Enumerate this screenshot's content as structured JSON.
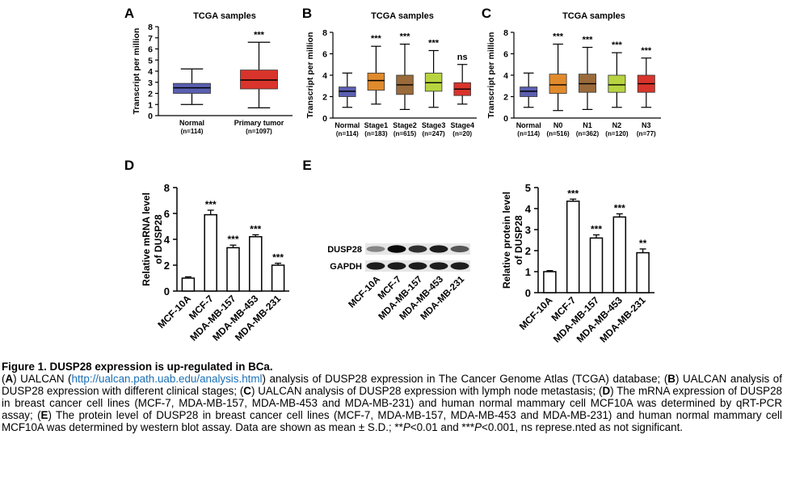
{
  "panels": {
    "A": {
      "letter": "A",
      "title": "TCGA samples",
      "ylabel": "Transcript per million",
      "ylim": [
        0,
        8
      ],
      "yticks": [
        "0",
        "1",
        "2",
        "3",
        "4",
        "5",
        "6",
        "7",
        "8"
      ],
      "groups": [
        {
          "name": "Normal",
          "n": "(n=114)",
          "sig": "",
          "color": "#5a5fb0",
          "min": 1.0,
          "q1": 2.0,
          "median": 2.5,
          "q3": 2.9,
          "max": 4.2
        },
        {
          "name": "Primary  tumor",
          "n": "(n=1097)",
          "sig": "***",
          "color": "#d9342b",
          "min": 0.7,
          "q1": 2.4,
          "median": 3.2,
          "q3": 4.1,
          "max": 6.6
        }
      ]
    },
    "B": {
      "letter": "B",
      "title": "TCGA samples",
      "ylabel": "Transcript per million",
      "ylim": [
        0,
        8
      ],
      "yticks": [
        "0",
        "2",
        "4",
        "6",
        "8"
      ],
      "groups": [
        {
          "name": "Normal",
          "n": "(n=114)",
          "sig": "",
          "color": "#5a5fb0",
          "min": 1.0,
          "q1": 2.0,
          "median": 2.5,
          "q3": 2.9,
          "max": 4.2
        },
        {
          "name": "Stage1",
          "n": "(n=183)",
          "sig": "***",
          "color": "#e08a2c",
          "min": 1.3,
          "q1": 2.6,
          "median": 3.5,
          "q3": 4.2,
          "max": 6.7
        },
        {
          "name": "Stage2",
          "n": "(n=615)",
          "sig": "***",
          "color": "#9a6a3a",
          "min": 0.8,
          "q1": 2.2,
          "median": 3.1,
          "q3": 4.0,
          "max": 6.9
        },
        {
          "name": "Stage3",
          "n": "(n=247)",
          "sig": "***",
          "color": "#b7d440",
          "min": 1.0,
          "q1": 2.5,
          "median": 3.3,
          "q3": 4.2,
          "max": 6.3
        },
        {
          "name": "Stage4",
          "n": "(n=20)",
          "sig": "ns",
          "color": "#d9342b",
          "min": 1.3,
          "q1": 2.1,
          "median": 2.7,
          "q3": 3.3,
          "max": 5.0
        }
      ]
    },
    "C": {
      "letter": "C",
      "title": "TCGA samples",
      "ylabel": "Transcript per million",
      "ylim": [
        0,
        8
      ],
      "yticks": [
        "0",
        "2",
        "4",
        "6",
        "8"
      ],
      "groups": [
        {
          "name": "Normal",
          "n": "(n=114)",
          "sig": "",
          "color": "#5a5fb0",
          "min": 1.0,
          "q1": 2.0,
          "median": 2.5,
          "q3": 2.9,
          "max": 4.2
        },
        {
          "name": "N0",
          "n": "(n=516)",
          "sig": "***",
          "color": "#e08a2c",
          "min": 0.7,
          "q1": 2.3,
          "median": 3.1,
          "q3": 4.1,
          "max": 6.9
        },
        {
          "name": "N1",
          "n": "(n=362)",
          "sig": "***",
          "color": "#9a6a3a",
          "min": 0.8,
          "q1": 2.4,
          "median": 3.2,
          "q3": 4.1,
          "max": 6.6
        },
        {
          "name": "N2",
          "n": "(n=120)",
          "sig": "***",
          "color": "#b7d440",
          "min": 1.0,
          "q1": 2.4,
          "median": 3.1,
          "q3": 4.0,
          "max": 6.1
        },
        {
          "name": "N3",
          "n": "(n=77)",
          "sig": "***",
          "color": "#d9342b",
          "min": 1.0,
          "q1": 2.4,
          "median": 3.2,
          "q3": 4.0,
          "max": 5.6
        }
      ]
    },
    "D": {
      "letter": "D",
      "ylabel_line1": "Relative mRNA level",
      "ylabel_line2": "of DUSP28",
      "ylim": [
        0,
        8
      ],
      "yticks": [
        "0",
        "2",
        "4",
        "6",
        "8"
      ],
      "categories": [
        "MCF-10A",
        "MCF-7",
        "MDA-MB-157",
        "MDA-MB-453",
        "MDA-MB-231"
      ],
      "values": [
        1.0,
        5.9,
        3.35,
        4.2,
        2.0
      ],
      "errors": [
        0.1,
        0.35,
        0.2,
        0.15,
        0.15
      ],
      "sig": [
        "",
        "***",
        "***",
        "***",
        "***"
      ]
    },
    "E": {
      "letter": "E",
      "blot_labels": [
        "DUSP28",
        "GAPDH"
      ],
      "blot_lanes": [
        "MCF-10A",
        "MCF-7",
        "MDA-MB-157",
        "MDA-MB-453",
        "MDA-MB-231"
      ],
      "band_intensity": {
        "DUSP28": [
          0.35,
          1.0,
          0.8,
          0.9,
          0.6
        ],
        "GAPDH": [
          0.9,
          0.9,
          0.9,
          0.9,
          0.9
        ]
      },
      "ylabel_line1": "Relative protein level",
      "ylabel_line2": "of DUSP28",
      "ylim": [
        0,
        5
      ],
      "yticks": [
        "0",
        "1",
        "2",
        "3",
        "4",
        "5"
      ],
      "categories": [
        "MCF-10A",
        "MCF-7",
        "MDA-MB-157",
        "MDA-MB-453",
        "MDA-MB-231"
      ],
      "values": [
        1.0,
        4.35,
        2.6,
        3.6,
        1.9
      ],
      "errors": [
        0.05,
        0.1,
        0.15,
        0.15,
        0.18
      ],
      "sig": [
        "",
        "***",
        "***",
        "***",
        "**"
      ]
    }
  },
  "chart_data": [
    {
      "type": "box",
      "title": "TCGA samples",
      "ylabel": "Transcript per million",
      "ylim": [
        0,
        8
      ],
      "categories": [
        "Normal (n=114)",
        "Primary  tumor (n=1097)"
      ],
      "series": [
        {
          "median": [
            2.5,
            3.2
          ],
          "q1": [
            2.0,
            2.4
          ],
          "q3": [
            2.9,
            4.1
          ],
          "min": [
            1.0,
            0.7
          ],
          "max": [
            4.2,
            6.6
          ]
        }
      ]
    },
    {
      "type": "box",
      "title": "TCGA samples",
      "ylabel": "Transcript per million",
      "ylim": [
        0,
        8
      ],
      "categories": [
        "Normal (n=114)",
        "Stage1 (n=183)",
        "Stage2 (n=615)",
        "Stage3 (n=247)",
        "Stage4 (n=20)"
      ],
      "series": [
        {
          "median": [
            2.5,
            3.5,
            3.1,
            3.3,
            2.7
          ]
        }
      ]
    },
    {
      "type": "box",
      "title": "TCGA samples",
      "ylabel": "Transcript per million",
      "ylim": [
        0,
        8
      ],
      "categories": [
        "Normal (n=114)",
        "N0 (n=516)",
        "N1 (n=362)",
        "N2 (n=120)",
        "N3 (n=77)"
      ],
      "series": [
        {
          "median": [
            2.5,
            3.1,
            3.2,
            3.1,
            3.2
          ]
        }
      ]
    },
    {
      "type": "bar",
      "ylabel": "Relative mRNA level of DUSP28",
      "ylim": [
        0,
        8
      ],
      "categories": [
        "MCF-10A",
        "MCF-7",
        "MDA-MB-157",
        "MDA-MB-453",
        "MDA-MB-231"
      ],
      "values": [
        1.0,
        5.9,
        3.35,
        4.2,
        2.0
      ]
    },
    {
      "type": "bar",
      "ylabel": "Relative protein level of DUSP28",
      "ylim": [
        0,
        5
      ],
      "categories": [
        "MCF-10A",
        "MCF-7",
        "MDA-MB-157",
        "MDA-MB-453",
        "MDA-MB-231"
      ],
      "values": [
        1.0,
        4.35,
        2.6,
        3.6,
        1.9
      ]
    }
  ],
  "caption": {
    "title": "Figure  1. DUSP28 expression is up-regulated in BCa.",
    "a_label": "A",
    "a_text1": " UALCAN (",
    "a_link": "http://ualcan.path.uab.edu/analysis.html",
    "a_text2": ") analysis of DUSP28 expression in The Cancer Genome Atlas (TCGA)  database; (",
    "b_label": "B",
    "b_text": ") UALCAN analysis of DUSP28 expression with different clinical stages; (",
    "c_label": "C",
    "c_text": ") UALCAN analysis of DUSP28 expression with lymph node metastasis;  (",
    "d_label": "D",
    "d_text": ") The mRNA expression of DUSP28 in breast cancer cell lines (MCF-7, MDA-MB-157, MDA-MB-453 and MDA-MB-231) and human normal mammary cell MCF10A was determined by qRT-PCR assay; (",
    "e_label": "E",
    "e_text": ") The protein level of DUSP28 in breast cancer cell lines (MCF-7, MDA-MB-157, MDA-MB-453 and MDA-MB-231) and human normal mammary cell MCF10A was determined by western blot assay. Data are shown as mean ± S.D.; **",
    "p1": "P",
    "p1_text": "<0.01 and ***",
    "p2": "P",
    "p2_text": "<0.001, ns represe.nted as not significant."
  }
}
